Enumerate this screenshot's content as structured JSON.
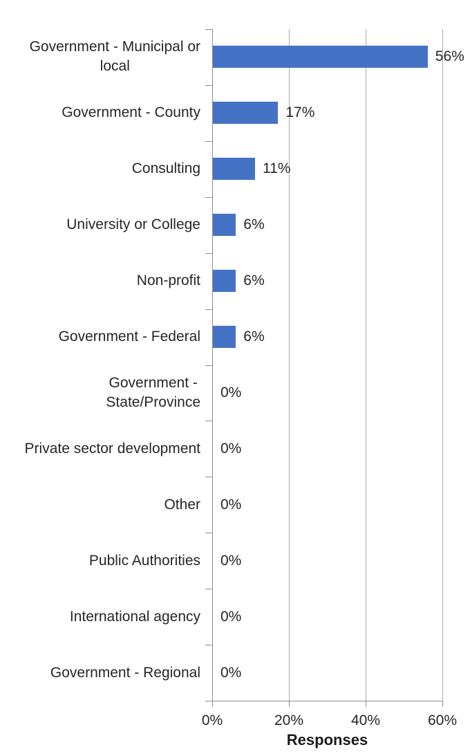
{
  "chart_data": {
    "type": "bar",
    "orientation": "horizontal",
    "title": "",
    "xlabel": "Responses",
    "ylabel": "",
    "xlim": [
      0,
      60
    ],
    "xticks": [
      {
        "value": 0,
        "label": "0%"
      },
      {
        "value": 20,
        "label": "20%"
      },
      {
        "value": 40,
        "label": "40%"
      },
      {
        "value": 60,
        "label": "60%"
      }
    ],
    "grid": "vertical gridlines on",
    "legend": "none",
    "categories": [
      "Government - Municipal or\nlocal",
      "Government - County",
      "Consulting",
      "University or College",
      "Non-profit",
      "Government - Federal",
      "Government -\nState/Province",
      "Private sector development",
      "Other",
      "Public Authorities",
      "International agency",
      "Government - Regional"
    ],
    "values": [
      56,
      17,
      11,
      6,
      6,
      6,
      0,
      0,
      0,
      0,
      0,
      0
    ],
    "value_labels": [
      "56%",
      "17%",
      "11%",
      "6%",
      "6%",
      "6%",
      "0%",
      "0%",
      "0%",
      "0%",
      "0%",
      "0%"
    ],
    "colors": {
      "bar": "#4472C4",
      "gridline": "#ABABAB",
      "axis": "#8C8C8C",
      "text": "#262626",
      "background": "#FFFFFF"
    }
  }
}
